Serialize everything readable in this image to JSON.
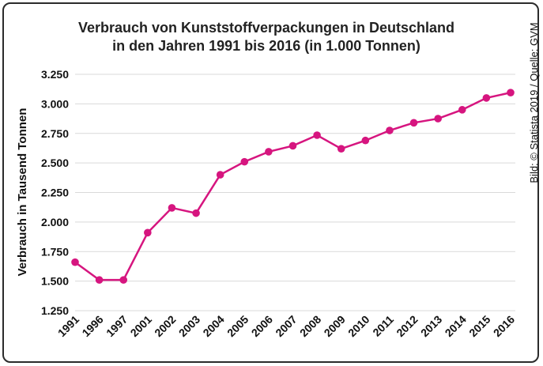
{
  "chart_data": {
    "type": "line",
    "title": [
      "Verbrauch von Kunststoffverpackungen in Deutschland",
      "in den Jahren 1991 bis 2016 (in 1.000 Tonnen)"
    ],
    "xlabel": "",
    "ylabel": "Verbrauch in Tausend Tonnen",
    "categories": [
      "1991",
      "1996",
      "1997",
      "2001",
      "2002",
      "2003",
      "2004",
      "2005",
      "2006",
      "2007",
      "2008",
      "2009",
      "2010",
      "2011",
      "2012",
      "2013",
      "2014",
      "2015",
      "2016"
    ],
    "series": [
      {
        "name": "Verbrauch",
        "color": "#d6157f",
        "values": [
          1660,
          1510,
          1510,
          1910,
          2120,
          2075,
          2400,
          2510,
          2595,
          2645,
          2735,
          2620,
          2690,
          2775,
          2840,
          2875,
          2950,
          3050,
          3095
        ]
      }
    ],
    "ylim": [
      1250,
      3250
    ],
    "yticks": [
      1250,
      1500,
      1750,
      2000,
      2250,
      2500,
      2750,
      3000,
      3250
    ],
    "ytick_labels": [
      "1.250",
      "1.500",
      "1.750",
      "2.000",
      "2.250",
      "2.500",
      "2.750",
      "3.000",
      "3.250"
    ],
    "grid": true,
    "legend": "none"
  },
  "source": "Bild: © Statista 2019 / Quelle: GVM"
}
